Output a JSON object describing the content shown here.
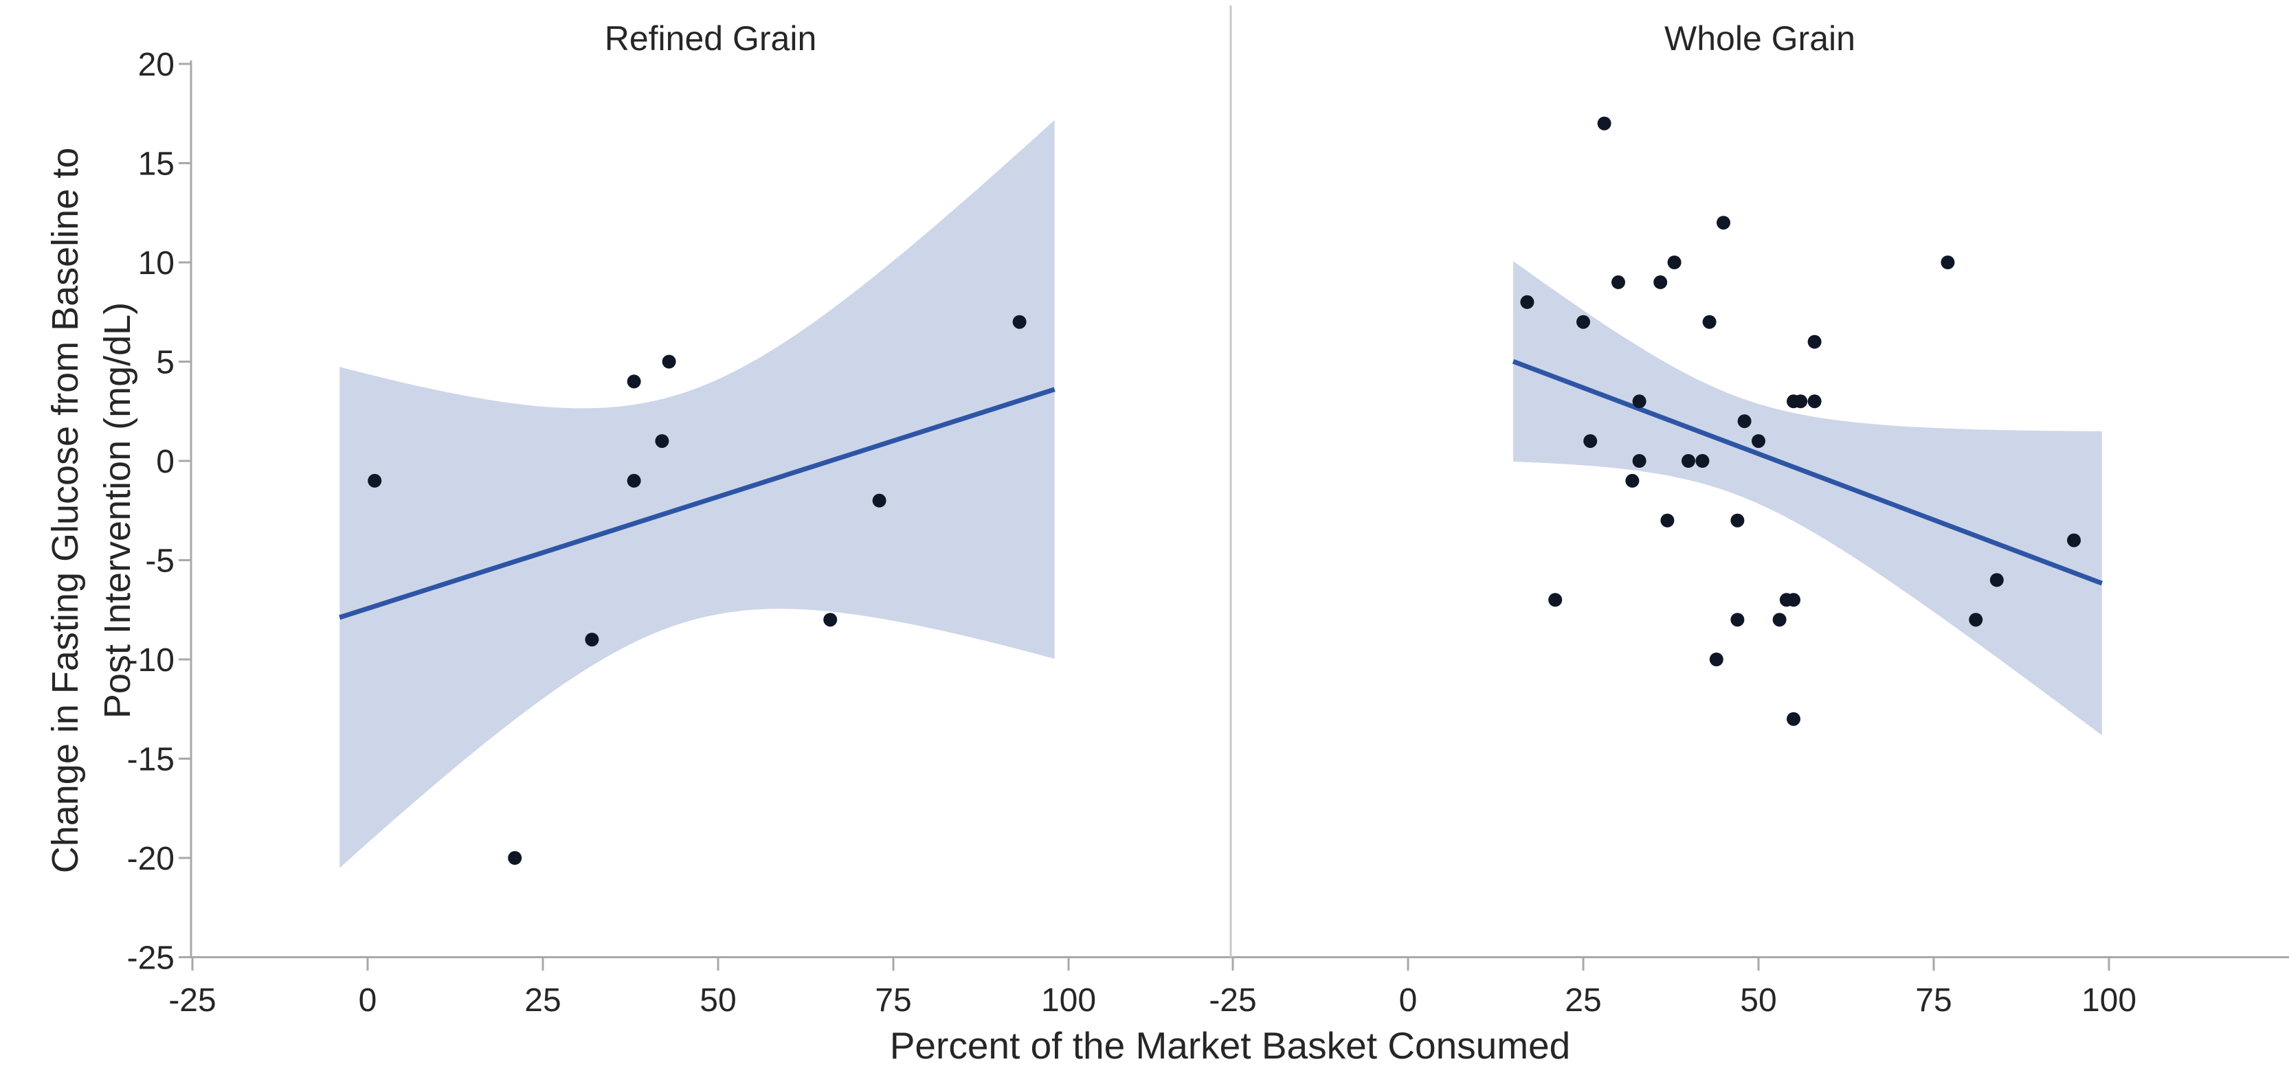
{
  "figure": {
    "background": "#ffffff",
    "y_axis": {
      "label_line1": "Change in Fasting Glucose from Baseline to",
      "label_line2": "Post Intervention (mg/dL)",
      "ticks": [
        20,
        15,
        10,
        5,
        0,
        -5,
        -10,
        -15,
        -20,
        -25
      ]
    },
    "x_axis": {
      "label": "Percent of the Market Basket Consumed",
      "ticks": [
        -25,
        0,
        25,
        50,
        75,
        100
      ]
    }
  },
  "colors": {
    "trend_line": "#2e55a5",
    "ci_band": "#cdd6e8",
    "point": "#0f1626",
    "axis": "#a8a8a8",
    "divider": "#c9c9c9",
    "text": "#262626"
  },
  "chart_data": [
    {
      "type": "scatter",
      "title": "Refined Grain",
      "xlabel": "Percent of the Market Basket Consumed",
      "ylabel": "Change in Fasting Glucose from Baseline to Post Intervention (mg/dL)",
      "x": [
        1,
        21,
        32,
        38,
        38,
        42,
        43,
        66,
        73,
        93
      ],
      "y": [
        -1,
        -20,
        -9,
        4,
        -1,
        1,
        5,
        -8,
        -2,
        7
      ],
      "xlim": [
        -25,
        125.5
      ],
      "ylim": [
        -25,
        20
      ],
      "xticks": [
        -25,
        0,
        25,
        50,
        75,
        100
      ],
      "yticks": [
        20,
        15,
        10,
        5,
        0,
        -5,
        -10,
        -15,
        -20,
        -25
      ],
      "grid": false,
      "trend": {
        "kind": "ols_linear",
        "ci_level": 0.95,
        "x_range": [
          -4,
          98
        ]
      }
    },
    {
      "type": "scatter",
      "title": "Whole Grain",
      "xlabel": "Percent of the Market Basket Consumed",
      "ylabel": "Change in Fasting Glucose from Baseline to Post Intervention (mg/dL)",
      "x": [
        17,
        21,
        25,
        26,
        28,
        30,
        32,
        33,
        33,
        36,
        37,
        38,
        40,
        42,
        43,
        44,
        45,
        47,
        47,
        48,
        50,
        53,
        54,
        55,
        55,
        55,
        56,
        58,
        58,
        77,
        81,
        84,
        95
      ],
      "y": [
        8,
        -7,
        7,
        1,
        17,
        9,
        -1,
        0,
        3,
        9,
        -3,
        10,
        0,
        0,
        7,
        -10,
        12,
        -3,
        -8,
        2,
        1,
        -8,
        -7,
        -13,
        -7,
        3,
        3,
        3,
        6,
        10,
        -8,
        -6,
        -4
      ],
      "xlim": [
        -25.3,
        125.7
      ],
      "ylim": [
        -25,
        20
      ],
      "xticks": [
        -25,
        0,
        25,
        50,
        75,
        100
      ],
      "yticks": [
        20,
        15,
        10,
        5,
        0,
        -5,
        -10,
        -15,
        -20,
        -25
      ],
      "grid": false,
      "trend": {
        "kind": "ols_linear",
        "ci_level": 0.95,
        "x_range": [
          15,
          99
        ]
      }
    }
  ]
}
